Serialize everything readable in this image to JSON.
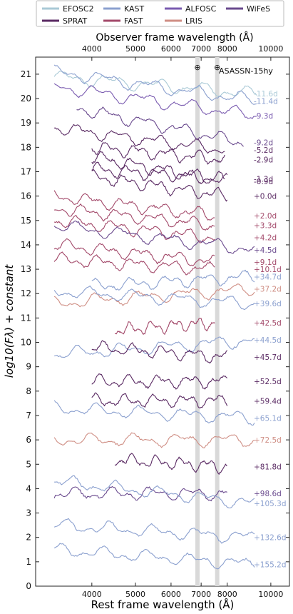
{
  "chart_data": {
    "type": "line",
    "title": "ASASSN-15hy",
    "xlabel_bottom": "Rest frame wavelength",
    "xlabel_top": "Observer frame wavelength",
    "xunit": "(Å)",
    "ylabel": "log10(Fλ) + constant",
    "xscale": "log",
    "xlim": [
      3000,
      11000
    ],
    "ylim": [
      0,
      21.7
    ],
    "xticks_bottom": [
      4000,
      5000,
      6000,
      7000,
      8000,
      10000
    ],
    "xticks_top": [
      4000,
      5000,
      6000,
      7000,
      8000,
      10000
    ],
    "yticks": [
      0,
      1,
      2,
      3,
      4,
      5,
      6,
      7,
      8,
      9,
      10,
      11,
      12,
      13,
      14,
      15,
      16,
      17,
      18,
      19,
      20,
      21
    ],
    "telluric_bands": [
      6870,
      7600
    ],
    "telluric_symbol": "⊕",
    "instruments": [
      {
        "name": "EFOSC2",
        "color": "#a9c9d6"
      },
      {
        "name": "KAST",
        "color": "#8ba0cf"
      },
      {
        "name": "ALFOSC",
        "color": "#7a5bb0"
      },
      {
        "name": "WiFeS",
        "color": "#6a4a8e"
      },
      {
        "name": "SPRAT",
        "color": "#5a2a63"
      },
      {
        "name": "FAST",
        "color": "#a3496a"
      },
      {
        "name": "LRIS",
        "color": "#cf8e84"
      }
    ],
    "spectra": [
      {
        "label": "-11.6d",
        "instrument": "EFOSC2",
        "y_label": 20.2,
        "y_start": 20.9,
        "x_start": 3300,
        "x_end": 9300
      },
      {
        "label": "-11.4d",
        "instrument": "KAST",
        "y_label": 19.9,
        "y_start": 21.1,
        "x_start": 3300,
        "x_end": 9300
      },
      {
        "label": "-9.3d",
        "instrument": "ALFOSC",
        "y_label": 19.3,
        "y_start": 20.5,
        "x_start": 3300,
        "x_end": 9300
      },
      {
        "label": "-9.2d",
        "instrument": "WiFeS",
        "y_label": 18.2,
        "y_start": 19.6,
        "x_start": 3700,
        "x_end": 8700
      },
      {
        "label": "-5.2d",
        "instrument": "SPRAT",
        "y_label": 17.9,
        "y_start": 18.8,
        "x_start": 3300,
        "x_end": 7900
      },
      {
        "label": "-2.9d",
        "instrument": "SPRAT",
        "y_label": 17.5,
        "y_start": 18.0,
        "x_start": 4000,
        "x_end": 7900
      },
      {
        "label": "-0.9d",
        "instrument": "SPRAT",
        "y_label": 16.6,
        "y_start": 17.6,
        "x_start": 4000,
        "x_end": 8000
      },
      {
        "label": "-1.3d",
        "instrument": "SPRAT",
        "y_label": 16.7,
        "y_start": 17.1,
        "x_start": 4000,
        "x_end": 7900
      },
      {
        "label": "+0.0d",
        "instrument": "SPRAT",
        "y_label": 16.0,
        "y_start": 16.8,
        "x_start": 4000,
        "x_end": 8000
      },
      {
        "label": "+2.0d",
        "instrument": "FAST",
        "y_label": 15.2,
        "y_start": 16.0,
        "x_start": 3300,
        "x_end": 7500
      },
      {
        "label": "+3.3d",
        "instrument": "FAST",
        "y_label": 14.8,
        "y_start": 15.5,
        "x_start": 3300,
        "x_end": 7500
      },
      {
        "label": "+4.2d",
        "instrument": "FAST",
        "y_label": 14.3,
        "y_start": 15.0,
        "x_start": 3300,
        "x_end": 7500
      },
      {
        "label": "+4.5d",
        "instrument": "WiFeS",
        "y_label": 13.8,
        "y_start": 14.8,
        "x_start": 3300,
        "x_end": 9200
      },
      {
        "label": "+9.1d",
        "instrument": "FAST",
        "y_label": 13.3,
        "y_start": 14.0,
        "x_start": 3300,
        "x_end": 7500
      },
      {
        "label": "+10.1d",
        "instrument": "FAST",
        "y_label": 13.0,
        "y_start": 13.4,
        "x_start": 3300,
        "x_end": 7500
      },
      {
        "label": "+34.7d",
        "instrument": "KAST",
        "y_label": 12.7,
        "y_start": 12.3,
        "x_start": 4000,
        "x_end": 9200
      },
      {
        "label": "+37.2d",
        "instrument": "LRIS",
        "y_label": 12.2,
        "y_start": 11.6,
        "x_start": 3300,
        "x_end": 9200
      },
      {
        "label": "+39.6d",
        "instrument": "KAST",
        "y_label": 11.6,
        "y_start": 12.1,
        "x_start": 3300,
        "x_end": 9200
      },
      {
        "label": "+42.5d",
        "instrument": "FAST",
        "y_label": 10.8,
        "y_start": 10.5,
        "x_start": 4500,
        "x_end": 7500
      },
      {
        "label": "+44.5d",
        "instrument": "KAST",
        "y_label": 10.1,
        "y_start": 9.5,
        "x_start": 3300,
        "x_end": 9200
      },
      {
        "label": "+45.7d",
        "instrument": "SPRAT",
        "y_label": 9.4,
        "y_start": 9.8,
        "x_start": 4000,
        "x_end": 8000
      },
      {
        "label": "+52.5d",
        "instrument": "SPRAT",
        "y_label": 8.4,
        "y_start": 8.4,
        "x_start": 4000,
        "x_end": 8000
      },
      {
        "label": "+59.4d",
        "instrument": "SPRAT",
        "y_label": 7.6,
        "y_start": 7.6,
        "x_start": 4000,
        "x_end": 8000
      },
      {
        "label": "+65.1d",
        "instrument": "KAST",
        "y_label": 6.9,
        "y_start": 7.3,
        "x_start": 3300,
        "x_end": 9200
      },
      {
        "label": "+72.5d",
        "instrument": "LRIS",
        "y_label": 6.0,
        "y_start": 6.0,
        "x_start": 3300,
        "x_end": 9200
      },
      {
        "label": "+81.8d",
        "instrument": "SPRAT",
        "y_label": 4.9,
        "y_start": 5.2,
        "x_start": 4500,
        "x_end": 8000
      },
      {
        "label": "+98.6d",
        "instrument": "WiFeS",
        "y_label": 3.8,
        "y_start": 3.8,
        "x_start": 3300,
        "x_end": 8000
      },
      {
        "label": "+105.3d",
        "instrument": "KAST",
        "y_label": 3.4,
        "y_start": 4.3,
        "x_start": 3300,
        "x_end": 9200
      },
      {
        "label": "+132.6d",
        "instrument": "KAST",
        "y_label": 2.0,
        "y_start": 2.5,
        "x_start": 3300,
        "x_end": 9200
      },
      {
        "label": "+155.2d",
        "instrument": "KAST",
        "y_label": 0.9,
        "y_start": 1.5,
        "x_start": 3300,
        "x_end": 9200
      }
    ]
  }
}
